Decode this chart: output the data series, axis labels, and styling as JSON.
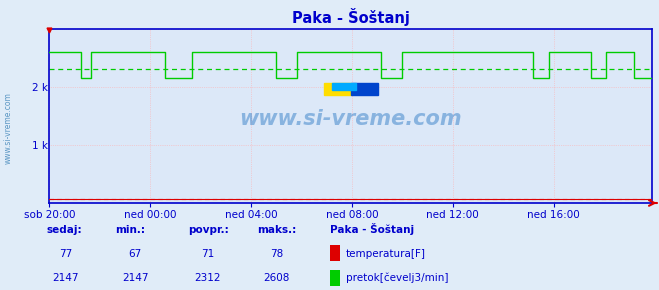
{
  "title": "Paka - Šoštanj",
  "bg_color": "#e0ecf8",
  "plot_bg_color": "#dce8f8",
  "border_color": "#0000cc",
  "grid_color": "#ffb0b0",
  "ytick_labels": [
    "1 k",
    "2 k"
  ],
  "ytick_vals": [
    1000,
    2000
  ],
  "ylim": [
    0,
    3000
  ],
  "xlim": [
    0,
    287
  ],
  "xtick_pos": [
    0,
    48,
    96,
    144,
    192,
    240
  ],
  "xtick_labels": [
    "sob 20:00",
    "ned 00:00",
    "ned 04:00",
    "ned 08:00",
    "ned 12:00",
    "ned 16:00"
  ],
  "temp_color": "#dd0000",
  "flow_color": "#00cc00",
  "flow_avg": 2312,
  "temp_avg": 71,
  "temp_min": 67,
  "temp_max": 78,
  "flow_min": 2147,
  "flow_max": 2608,
  "temp_current": 77,
  "flow_current": 2147,
  "watermark": "www.si-vreme.com",
  "station_label": "Paka - Šoštanj",
  "label1": "temperatura[F]",
  "label2": "pretok[čevelj3/min]",
  "table_headers": [
    "sedaj:",
    "min.:",
    "povpr.:",
    "maks.:"
  ],
  "table_color": "#0000cc",
  "n_points": 288,
  "flow_high_segments": [
    [
      0,
      15
    ],
    [
      20,
      55
    ],
    [
      68,
      108
    ],
    [
      118,
      158
    ],
    [
      168,
      230
    ],
    [
      238,
      258
    ],
    [
      265,
      278
    ]
  ],
  "flow_low_val": 2147,
  "flow_high_val": 2608,
  "temp_val": 77
}
